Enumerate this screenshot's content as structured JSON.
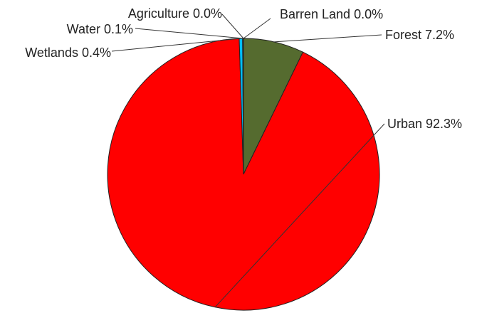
{
  "chart_data": {
    "type": "pie",
    "title": "",
    "slices": [
      {
        "category": "Barren Land",
        "value": 0.0,
        "label": "Barren Land 0.0%",
        "color": "#4caf50"
      },
      {
        "category": "Forest",
        "value": 7.2,
        "label": "Forest 7.2%",
        "color": "#556b2f"
      },
      {
        "category": "Urban",
        "value": 92.3,
        "label": "Urban 92.3%",
        "color": "#ff0000"
      },
      {
        "category": "Wetlands",
        "value": 0.4,
        "label": "Wetlands 0.4%",
        "color": "#00bfff"
      },
      {
        "category": "Water",
        "value": 0.1,
        "label": "Water 0.1%",
        "color": "#1f3b8f"
      },
      {
        "category": "Agriculture",
        "value": 0.0,
        "label": "Agriculture 0.0%",
        "color": "#f2d21b"
      }
    ],
    "legend": "none",
    "labels_position": "outside-with-leader-lines"
  }
}
